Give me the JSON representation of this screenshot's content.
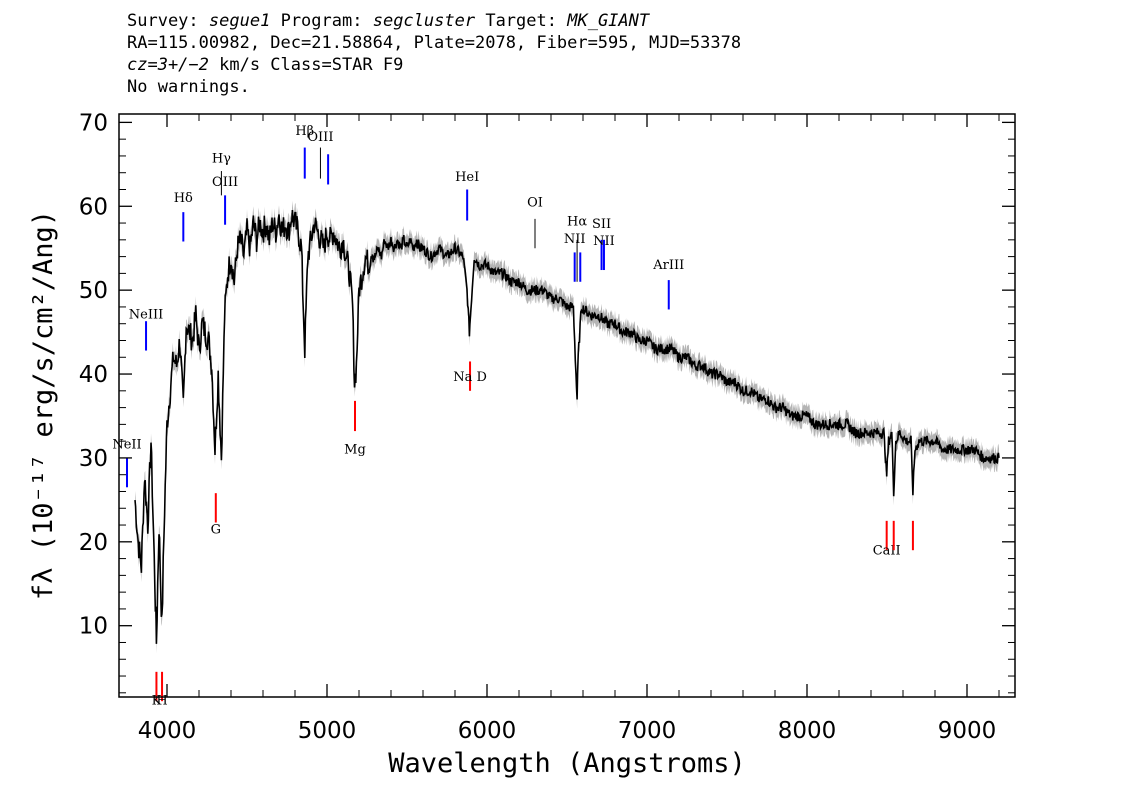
{
  "header": {
    "survey_key": "Survey:",
    "survey_val": "segue1",
    "program_key": "Program:",
    "program_val": "segcluster",
    "target_key": "Target:",
    "target_val": "MK_GIANT",
    "line2": "RA=115.00982, Dec=21.58864, Plate=2078, Fiber=595, MJD=53378",
    "cz_val": "cz=3+/−2",
    "cz_rest": " km/s Class=STAR F9",
    "line4": "No warnings."
  },
  "colors": {
    "spectrum": "#000000",
    "error_band": "#b4b4b4",
    "emission": "#0000ff",
    "absorption": "#ff0000",
    "sky": "#000000"
  },
  "chart_data": {
    "type": "line",
    "xlabel": "Wavelength (Angstroms)",
    "ylabel": "fλ (10⁻¹⁷ erg/s/cm²/Ang)",
    "xlim": [
      3700,
      9300
    ],
    "ylim": [
      1.5,
      71
    ],
    "x_ticks": [
      4000,
      5000,
      6000,
      7000,
      8000,
      9000
    ],
    "y_ticks": [
      10,
      20,
      30,
      40,
      50,
      60,
      70
    ],
    "grid": false,
    "legend": "none",
    "series": [
      {
        "values_xy": [
          [
            3800,
            25
          ],
          [
            3820,
            20
          ],
          [
            3840,
            17
          ],
          [
            3860,
            28
          ],
          [
            3880,
            22
          ],
          [
            3900,
            32
          ],
          [
            3920,
            18
          ],
          [
            3934,
            8
          ],
          [
            3950,
            22
          ],
          [
            3968,
            10
          ],
          [
            3985,
            24
          ],
          [
            4000,
            34
          ],
          [
            4020,
            38
          ],
          [
            4040,
            42
          ],
          [
            4060,
            41
          ],
          [
            4080,
            44
          ],
          [
            4102,
            36
          ],
          [
            4120,
            46
          ],
          [
            4140,
            45
          ],
          [
            4160,
            44
          ],
          [
            4180,
            47
          ],
          [
            4200,
            43
          ],
          [
            4220,
            46
          ],
          [
            4240,
            45
          ],
          [
            4260,
            44
          ],
          [
            4280,
            41
          ],
          [
            4300,
            31
          ],
          [
            4320,
            40
          ],
          [
            4340,
            30
          ],
          [
            4360,
            47
          ],
          [
            4380,
            52
          ],
          [
            4400,
            54
          ],
          [
            4420,
            51
          ],
          [
            4440,
            55
          ],
          [
            4460,
            56
          ],
          [
            4480,
            54
          ],
          [
            4500,
            57
          ],
          [
            4520,
            55
          ],
          [
            4540,
            58
          ],
          [
            4560,
            56
          ],
          [
            4580,
            58
          ],
          [
            4600,
            57
          ],
          [
            4620,
            58
          ],
          [
            4640,
            56
          ],
          [
            4660,
            58
          ],
          [
            4680,
            57
          ],
          [
            4700,
            59
          ],
          [
            4720,
            57
          ],
          [
            4740,
            58
          ],
          [
            4760,
            57
          ],
          [
            4780,
            59
          ],
          [
            4800,
            58
          ],
          [
            4820,
            57
          ],
          [
            4840,
            55
          ],
          [
            4861,
            43
          ],
          [
            4880,
            54
          ],
          [
            4900,
            56
          ],
          [
            4920,
            58
          ],
          [
            4940,
            57
          ],
          [
            4960,
            56
          ],
          [
            4980,
            55
          ],
          [
            5000,
            57
          ],
          [
            5020,
            56
          ],
          [
            5040,
            57
          ],
          [
            5060,
            56
          ],
          [
            5080,
            55
          ],
          [
            5100,
            56
          ],
          [
            5120,
            54
          ],
          [
            5140,
            52
          ],
          [
            5160,
            48
          ],
          [
            5172,
            39
          ],
          [
            5184,
            41
          ],
          [
            5200,
            50
          ],
          [
            5220,
            52
          ],
          [
            5240,
            54
          ],
          [
            5260,
            53
          ],
          [
            5280,
            55
          ],
          [
            5300,
            54
          ],
          [
            5320,
            55
          ],
          [
            5340,
            54
          ],
          [
            5360,
            56
          ],
          [
            5380,
            55
          ],
          [
            5400,
            56
          ],
          [
            5420,
            55
          ],
          [
            5440,
            56
          ],
          [
            5460,
            55
          ],
          [
            5480,
            56
          ],
          [
            5500,
            55
          ],
          [
            5520,
            56
          ],
          [
            5540,
            55
          ],
          [
            5560,
            56
          ],
          [
            5580,
            55
          ],
          [
            5600,
            55
          ],
          [
            5650,
            54
          ],
          [
            5700,
            55
          ],
          [
            5750,
            54
          ],
          [
            5800,
            55
          ],
          [
            5850,
            54
          ],
          [
            5875,
            50
          ],
          [
            5890,
            45
          ],
          [
            5900,
            48
          ],
          [
            5920,
            54
          ],
          [
            5950,
            53
          ],
          [
            6000,
            53
          ],
          [
            6050,
            52
          ],
          [
            6100,
            52
          ],
          [
            6150,
            51
          ],
          [
            6200,
            51
          ],
          [
            6250,
            50
          ],
          [
            6300,
            50
          ],
          [
            6350,
            50
          ],
          [
            6400,
            49
          ],
          [
            6450,
            49
          ],
          [
            6500,
            48
          ],
          [
            6540,
            48
          ],
          [
            6556,
            40
          ],
          [
            6563,
            37
          ],
          [
            6570,
            42
          ],
          [
            6590,
            48
          ],
          [
            6650,
            47
          ],
          [
            6700,
            47
          ],
          [
            6750,
            46
          ],
          [
            6800,
            46
          ],
          [
            6850,
            45
          ],
          [
            6900,
            45
          ],
          [
            6950,
            44
          ],
          [
            7000,
            44
          ],
          [
            7050,
            43
          ],
          [
            7100,
            43
          ],
          [
            7150,
            43
          ],
          [
            7200,
            42
          ],
          [
            7250,
            42
          ],
          [
            7300,
            41
          ],
          [
            7350,
            41
          ],
          [
            7400,
            40
          ],
          [
            7450,
            40
          ],
          [
            7500,
            39
          ],
          [
            7550,
            39
          ],
          [
            7600,
            38
          ],
          [
            7650,
            38
          ],
          [
            7700,
            37
          ],
          [
            7750,
            37
          ],
          [
            7800,
            36
          ],
          [
            7850,
            36
          ],
          [
            7900,
            35
          ],
          [
            7950,
            35
          ],
          [
            8000,
            35
          ],
          [
            8050,
            34
          ],
          [
            8100,
            34
          ],
          [
            8150,
            34
          ],
          [
            8200,
            34
          ],
          [
            8250,
            34
          ],
          [
            8300,
            33
          ],
          [
            8350,
            33
          ],
          [
            8400,
            33
          ],
          [
            8450,
            33
          ],
          [
            8480,
            33
          ],
          [
            8498,
            28
          ],
          [
            8510,
            32
          ],
          [
            8530,
            33
          ],
          [
            8542,
            26
          ],
          [
            8555,
            32
          ],
          [
            8580,
            33
          ],
          [
            8620,
            32
          ],
          [
            8650,
            32
          ],
          [
            8662,
            26
          ],
          [
            8675,
            31
          ],
          [
            8700,
            32
          ],
          [
            8750,
            32
          ],
          [
            8800,
            32
          ],
          [
            8850,
            31
          ],
          [
            8900,
            31
          ],
          [
            8950,
            31
          ],
          [
            9000,
            31
          ],
          [
            9050,
            31
          ],
          [
            9100,
            30
          ],
          [
            9150,
            30
          ],
          [
            9200,
            30
          ]
        ]
      }
    ],
    "lines": [
      {
        "label": "NeII",
        "wave": 3750,
        "kind": "emission",
        "label_y": 31.1,
        "top": 30.0,
        "bottom": 26.5
      },
      {
        "label": "NeIII",
        "wave": 3869,
        "kind": "emission",
        "label_y": 46.6,
        "top": 46.3,
        "bottom": 42.8
      },
      {
        "label": "Hδ",
        "wave": 4102,
        "kind": "emission",
        "label_y": 60.5,
        "top": 59.3,
        "bottom": 55.8
      },
      {
        "label": "Hγ",
        "wave": 4340,
        "kind": "sky",
        "label_y": 65.2,
        "top": 64.2,
        "bottom": 61.3
      },
      {
        "label": "OIII",
        "wave": 4363,
        "kind": "emission",
        "label_y": 62.4,
        "top": 61.3,
        "bottom": 57.8
      },
      {
        "label": "Hβ",
        "wave": 4861,
        "kind": "emission",
        "label_y": 68.5,
        "top": 67.0,
        "bottom": 63.3
      },
      {
        "label": "OIII",
        "wave": 4959,
        "kind": "sky",
        "label_y": 67.8,
        "top": 67.0,
        "bottom": 63.3
      },
      {
        "label": "",
        "wave": 5007,
        "kind": "emission",
        "label_y": 0,
        "top": 66.2,
        "bottom": 62.6
      },
      {
        "label": "HeI",
        "wave": 5876,
        "kind": "emission",
        "label_y": 63.0,
        "top": 62.0,
        "bottom": 58.3
      },
      {
        "label": "OI",
        "wave": 6300,
        "kind": "sky",
        "label_y": 60.0,
        "top": 58.5,
        "bottom": 55.0
      },
      {
        "label": "NII",
        "wave": 6548,
        "kind": "emission",
        "label_y": 55.6,
        "top": 54.5,
        "bottom": 51.0
      },
      {
        "label": "Hα",
        "wave": 6563,
        "kind": "sky",
        "label_y": 57.7,
        "top": 56.0,
        "bottom": 51.0
      },
      {
        "label": "",
        "wave": 6583,
        "kind": "emission",
        "label_y": 0,
        "top": 54.5,
        "bottom": 51.0
      },
      {
        "label": "SII",
        "wave": 6716,
        "kind": "emission",
        "label_y": 57.4,
        "top": 56.0,
        "bottom": 52.4
      },
      {
        "label": "NII",
        "wave": 6731,
        "kind": "emission",
        "label_y": 55.4,
        "top": 56.0,
        "bottom": 52.4
      },
      {
        "label": "ArIII",
        "wave": 7136,
        "kind": "emission",
        "label_y": 52.5,
        "top": 51.2,
        "bottom": 47.7
      },
      {
        "label": "K",
        "wave": 3934,
        "kind": "absorption",
        "label_y": 0.6,
        "top": 4.5,
        "bottom": 1.0
      },
      {
        "label": "H",
        "wave": 3969,
        "kind": "absorption",
        "label_y": 0.6,
        "top": 4.5,
        "bottom": 1.0
      },
      {
        "label": "G",
        "wave": 4305,
        "kind": "absorption",
        "label_y": 21.0,
        "top": 25.8,
        "bottom": 22.3
      },
      {
        "label": "Mg",
        "wave": 5175,
        "kind": "absorption",
        "label_y": 30.5,
        "top": 36.8,
        "bottom": 33.2
      },
      {
        "label": "Na D",
        "wave": 5894,
        "kind": "absorption",
        "label_y": 39.2,
        "top": 41.5,
        "bottom": 38.0
      },
      {
        "label": "CaII",
        "wave": 8498,
        "kind": "absorption",
        "label_y": 18.5,
        "top": 22.5,
        "bottom": 19.0
      },
      {
        "label": "",
        "wave": 8542,
        "kind": "absorption",
        "label_y": 0,
        "top": 22.5,
        "bottom": 19.0
      },
      {
        "label": "",
        "wave": 8662,
        "kind": "absorption",
        "label_y": 0,
        "top": 22.5,
        "bottom": 19.0
      }
    ]
  }
}
